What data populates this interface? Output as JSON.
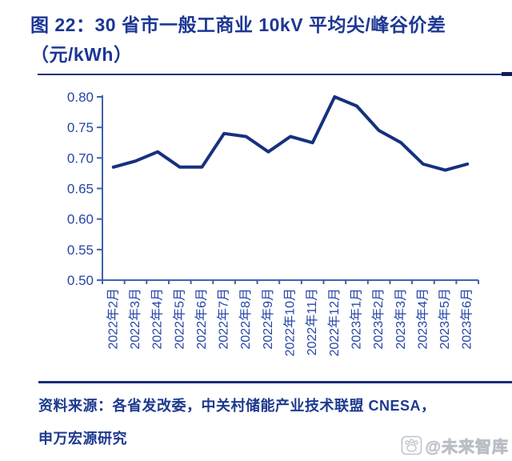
{
  "figure": {
    "title_line1": "图 22：30 省市一般工商业 10kV 平均尖/峰谷价差",
    "title_line2": "（元/kWh）"
  },
  "chart_data": {
    "type": "line",
    "title": "30 省市一般工商业 10kV 平均尖/峰谷价差",
    "unit": "元/kWh",
    "categories": [
      "2022年2月",
      "2022年3月",
      "2022年4月",
      "2022年5月",
      "2022年6月",
      "2022年7月",
      "2022年8月",
      "2022年9月",
      "2022年10月",
      "2022年11月",
      "2022年12月",
      "2023年1月",
      "2023年2月",
      "2023年3月",
      "2023年4月",
      "2023年5月",
      "2023年6月"
    ],
    "series": [
      {
        "name": "平均尖/峰谷价差",
        "values": [
          0.685,
          0.695,
          0.71,
          0.685,
          0.685,
          0.74,
          0.735,
          0.71,
          0.735,
          0.725,
          0.8,
          0.785,
          0.745,
          0.725,
          0.69,
          0.68,
          0.69
        ]
      }
    ],
    "ylim": [
      0.5,
      0.8
    ],
    "ytick_step": 0.05,
    "ytick_labels": [
      "0.80",
      "0.75",
      "0.70",
      "0.65",
      "0.60",
      "0.55",
      "0.50"
    ],
    "grid": false,
    "legend": "none",
    "x_labels_rotation": -90,
    "colors": {
      "line": "#15317e",
      "axis": "#4061ae",
      "labels": "#2545a6"
    }
  },
  "footer": {
    "source_line1": "资料来源：各省发改委，中关村储能产业技术联盟 CNESA，",
    "source_line2": "申万宏源研究"
  },
  "watermark": {
    "icon": "paw-logo-icon",
    "text": "@未来智库"
  }
}
